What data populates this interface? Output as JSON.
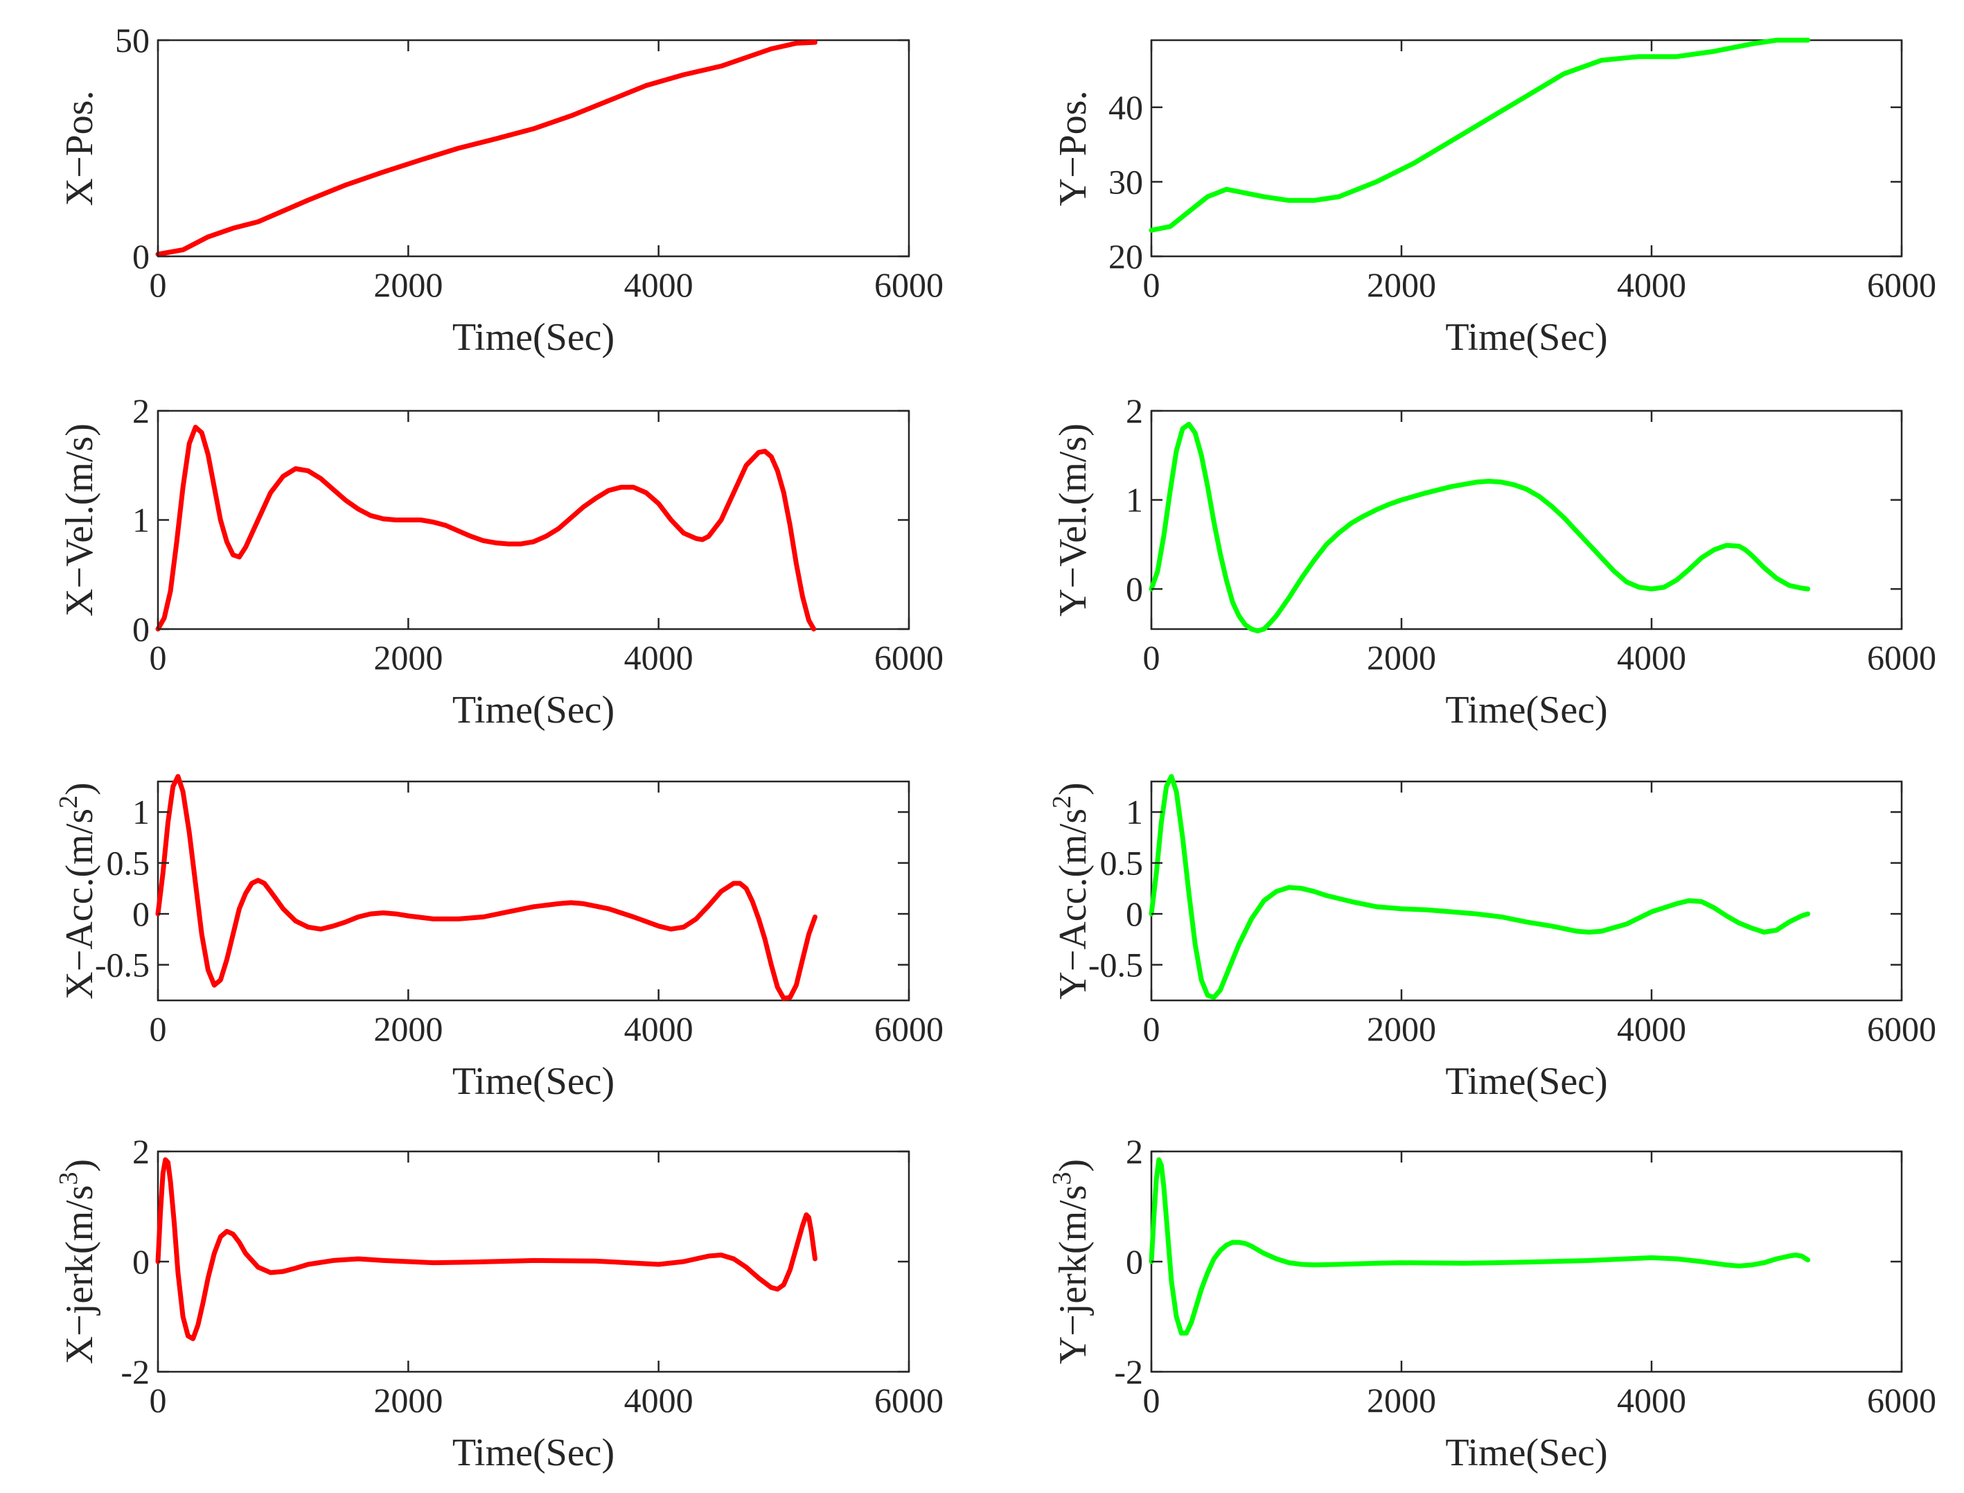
{
  "figure": {
    "colors": {
      "x_series": "#ff0000",
      "y_series": "#00ff00",
      "axes": "#262626"
    }
  },
  "chart_data": [
    {
      "id": "x-pos",
      "type": "line",
      "col": 0,
      "row": 0,
      "xlabel": "Time(Sec)",
      "ylabel": "X−Pos.",
      "ylabel_sup": "",
      "xlim": [
        0,
        6000
      ],
      "ylim": [
        0,
        50
      ],
      "xticks": [
        0,
        2000,
        4000,
        6000
      ],
      "xtick_labels": [
        "0",
        "2000",
        "4000",
        "6000"
      ],
      "yticks": [
        0,
        50
      ],
      "ytick_labels": [
        "0",
        "50"
      ],
      "series": [
        {
          "name": "X position",
          "color": "#ff0000",
          "x": [
            0,
            200,
            400,
            600,
            800,
            1000,
            1200,
            1500,
            1800,
            2100,
            2400,
            2700,
            3000,
            3300,
            3600,
            3900,
            4200,
            4500,
            4700,
            4900,
            5100,
            5250
          ],
          "y": [
            0.5,
            1.5,
            4.5,
            6.5,
            8,
            10.5,
            13,
            16.5,
            19.5,
            22.3,
            25,
            27.2,
            29.5,
            32.5,
            36,
            39.5,
            42,
            44,
            46,
            48,
            49.3,
            49.5
          ]
        }
      ]
    },
    {
      "id": "y-pos",
      "type": "line",
      "col": 1,
      "row": 0,
      "xlabel": "Time(Sec)",
      "ylabel": "Y−Pos.",
      "ylabel_sup": "",
      "xlim": [
        0,
        6000
      ],
      "ylim": [
        20,
        49
      ],
      "xticks": [
        0,
        2000,
        4000,
        6000
      ],
      "xtick_labels": [
        "0",
        "2000",
        "4000",
        "6000"
      ],
      "yticks": [
        20,
        30,
        40
      ],
      "ytick_labels": [
        "20",
        "30",
        "40"
      ],
      "series": [
        {
          "name": "Y position",
          "color": "#00ff00",
          "x": [
            0,
            150,
            300,
            450,
            600,
            750,
            900,
            1100,
            1300,
            1500,
            1800,
            2100,
            2400,
            2700,
            3000,
            3300,
            3600,
            3900,
            4200,
            4500,
            4800,
            5000,
            5250
          ],
          "y": [
            23.5,
            24,
            26,
            28,
            29,
            28.5,
            28,
            27.5,
            27.5,
            28,
            30,
            32.5,
            35.5,
            38.5,
            41.5,
            44.5,
            46.3,
            46.8,
            46.8,
            47.5,
            48.5,
            49,
            49
          ]
        }
      ]
    },
    {
      "id": "x-vel",
      "type": "line",
      "col": 0,
      "row": 1,
      "xlabel": "Time(Sec)",
      "ylabel": "X−Vel.(m/s)",
      "ylabel_sup": "",
      "xlim": [
        0,
        6000
      ],
      "ylim": [
        0,
        2
      ],
      "xticks": [
        0,
        2000,
        4000,
        6000
      ],
      "xtick_labels": [
        "0",
        "2000",
        "4000",
        "6000"
      ],
      "yticks": [
        0,
        1,
        2
      ],
      "ytick_labels": [
        "0",
        "1",
        "2"
      ],
      "series": [
        {
          "name": "X velocity",
          "color": "#ff0000",
          "x": [
            0,
            50,
            100,
            150,
            200,
            250,
            300,
            350,
            400,
            450,
            500,
            550,
            600,
            650,
            700,
            800,
            900,
            1000,
            1100,
            1200,
            1300,
            1400,
            1500,
            1600,
            1700,
            1800,
            1900,
            2000,
            2100,
            2200,
            2300,
            2400,
            2500,
            2600,
            2700,
            2800,
            2900,
            3000,
            3100,
            3200,
            3300,
            3400,
            3500,
            3600,
            3700,
            3800,
            3900,
            4000,
            4100,
            4200,
            4300,
            4350,
            4400,
            4500,
            4600,
            4700,
            4800,
            4850,
            4900,
            4950,
            5000,
            5050,
            5100,
            5150,
            5200,
            5240
          ],
          "y": [
            0,
            0.1,
            0.35,
            0.8,
            1.3,
            1.7,
            1.85,
            1.8,
            1.6,
            1.3,
            1.0,
            0.8,
            0.68,
            0.66,
            0.75,
            1.0,
            1.25,
            1.4,
            1.47,
            1.45,
            1.38,
            1.28,
            1.18,
            1.1,
            1.04,
            1.01,
            1.0,
            1.0,
            1.0,
            0.98,
            0.95,
            0.9,
            0.85,
            0.81,
            0.79,
            0.78,
            0.78,
            0.8,
            0.85,
            0.92,
            1.02,
            1.12,
            1.2,
            1.27,
            1.3,
            1.3,
            1.25,
            1.15,
            1.0,
            0.88,
            0.83,
            0.82,
            0.85,
            1.0,
            1.25,
            1.5,
            1.62,
            1.63,
            1.58,
            1.45,
            1.25,
            0.95,
            0.6,
            0.3,
            0.08,
            0
          ]
        }
      ]
    },
    {
      "id": "y-vel",
      "type": "line",
      "col": 1,
      "row": 1,
      "xlabel": "Time(Sec)",
      "ylabel": "Y−Vel.(m/s)",
      "ylabel_sup": "",
      "xlim": [
        0,
        6000
      ],
      "ylim": [
        -0.45,
        2
      ],
      "xticks": [
        0,
        2000,
        4000,
        6000
      ],
      "xtick_labels": [
        "0",
        "2000",
        "4000",
        "6000"
      ],
      "yticks": [
        0,
        1,
        2
      ],
      "ytick_labels": [
        "0",
        "1",
        "2"
      ],
      "series": [
        {
          "name": "Y velocity",
          "color": "#00ff00",
          "x": [
            0,
            50,
            100,
            150,
            200,
            250,
            300,
            350,
            400,
            450,
            500,
            550,
            600,
            650,
            700,
            750,
            800,
            850,
            900,
            950,
            1000,
            1100,
            1200,
            1300,
            1400,
            1500,
            1600,
            1700,
            1800,
            1900,
            2000,
            2200,
            2400,
            2600,
            2700,
            2800,
            2900,
            3000,
            3100,
            3200,
            3300,
            3400,
            3500,
            3600,
            3700,
            3800,
            3900,
            4000,
            4100,
            4200,
            4300,
            4400,
            4500,
            4600,
            4700,
            4750,
            4800,
            4900,
            5000,
            5100,
            5200,
            5250
          ],
          "y": [
            0,
            0.2,
            0.6,
            1.1,
            1.55,
            1.8,
            1.85,
            1.75,
            1.5,
            1.15,
            0.75,
            0.4,
            0.1,
            -0.15,
            -0.3,
            -0.4,
            -0.45,
            -0.47,
            -0.45,
            -0.38,
            -0.3,
            -0.1,
            0.12,
            0.32,
            0.5,
            0.63,
            0.74,
            0.82,
            0.89,
            0.95,
            1.0,
            1.08,
            1.15,
            1.2,
            1.21,
            1.2,
            1.17,
            1.12,
            1.04,
            0.93,
            0.8,
            0.65,
            0.5,
            0.35,
            0.2,
            0.08,
            0.02,
            0,
            0.02,
            0.1,
            0.22,
            0.35,
            0.44,
            0.49,
            0.48,
            0.44,
            0.38,
            0.24,
            0.12,
            0.04,
            0.01,
            0
          ]
        }
      ]
    },
    {
      "id": "x-acc",
      "type": "line",
      "col": 0,
      "row": 2,
      "xlabel": "Time(Sec)",
      "ylabel": "X−Acc.(m/s",
      "ylabel_sup": "2",
      "ylabel_close": ")",
      "xlim": [
        0,
        6000
      ],
      "ylim": [
        -0.85,
        1.3
      ],
      "xticks": [
        0,
        2000,
        4000,
        6000
      ],
      "xtick_labels": [
        "0",
        "2000",
        "4000",
        "6000"
      ],
      "yticks": [
        -0.5,
        0,
        0.5,
        1
      ],
      "ytick_labels": [
        "-0.5",
        "0",
        "0.5",
        "1"
      ],
      "series": [
        {
          "name": "X acceleration",
          "color": "#ff0000",
          "x": [
            0,
            40,
            80,
            120,
            160,
            200,
            250,
            300,
            350,
            400,
            450,
            500,
            550,
            600,
            650,
            700,
            750,
            800,
            850,
            900,
            1000,
            1100,
            1200,
            1300,
            1400,
            1500,
            1600,
            1700,
            1800,
            1900,
            2000,
            2200,
            2400,
            2600,
            2800,
            3000,
            3200,
            3300,
            3400,
            3600,
            3800,
            4000,
            4100,
            4200,
            4300,
            4400,
            4500,
            4600,
            4650,
            4700,
            4750,
            4800,
            4850,
            4900,
            4950,
            5000,
            5050,
            5100,
            5150,
            5200,
            5250
          ],
          "y": [
            0,
            0.4,
            0.9,
            1.25,
            1.35,
            1.2,
            0.8,
            0.3,
            -0.2,
            -0.55,
            -0.7,
            -0.65,
            -0.45,
            -0.2,
            0.05,
            0.2,
            0.3,
            0.33,
            0.3,
            0.22,
            0.05,
            -0.07,
            -0.13,
            -0.15,
            -0.12,
            -0.08,
            -0.03,
            0,
            0.01,
            0,
            -0.02,
            -0.05,
            -0.05,
            -0.03,
            0.02,
            0.07,
            0.1,
            0.11,
            0.1,
            0.05,
            -0.03,
            -0.12,
            -0.15,
            -0.13,
            -0.05,
            0.08,
            0.22,
            0.3,
            0.3,
            0.25,
            0.12,
            -0.05,
            -0.25,
            -0.5,
            -0.72,
            -0.83,
            -0.82,
            -0.7,
            -0.45,
            -0.2,
            -0.03
          ]
        }
      ]
    },
    {
      "id": "y-acc",
      "type": "line",
      "col": 1,
      "row": 2,
      "xlabel": "Time(Sec)",
      "ylabel": "Y−Acc.(m/s",
      "ylabel_sup": "2",
      "ylabel_close": ")",
      "xlim": [
        0,
        6000
      ],
      "ylim": [
        -0.85,
        1.3
      ],
      "xticks": [
        0,
        2000,
        4000,
        6000
      ],
      "xtick_labels": [
        "0",
        "2000",
        "4000",
        "6000"
      ],
      "yticks": [
        -0.5,
        0,
        0.5,
        1
      ],
      "ytick_labels": [
        "-0.5",
        "0",
        "0.5",
        "1"
      ],
      "series": [
        {
          "name": "Y acceleration",
          "color": "#00ff00",
          "x": [
            0,
            40,
            80,
            120,
            160,
            200,
            250,
            300,
            350,
            400,
            450,
            500,
            550,
            600,
            650,
            700,
            800,
            900,
            1000,
            1100,
            1200,
            1300,
            1400,
            1600,
            1800,
            2000,
            2200,
            2400,
            2600,
            2800,
            3000,
            3200,
            3400,
            3500,
            3600,
            3800,
            4000,
            4200,
            4300,
            4400,
            4500,
            4600,
            4700,
            4800,
            4900,
            5000,
            5100,
            5200,
            5250
          ],
          "y": [
            0,
            0.4,
            0.9,
            1.25,
            1.35,
            1.2,
            0.75,
            0.2,
            -0.3,
            -0.65,
            -0.8,
            -0.82,
            -0.75,
            -0.6,
            -0.45,
            -0.3,
            -0.05,
            0.13,
            0.22,
            0.26,
            0.25,
            0.22,
            0.18,
            0.12,
            0.07,
            0.05,
            0.04,
            0.02,
            0,
            -0.03,
            -0.08,
            -0.12,
            -0.17,
            -0.18,
            -0.17,
            -0.1,
            0.02,
            0.1,
            0.13,
            0.12,
            0.06,
            -0.02,
            -0.09,
            -0.14,
            -0.18,
            -0.16,
            -0.08,
            -0.02,
            0
          ]
        }
      ]
    },
    {
      "id": "x-jerk",
      "type": "line",
      "col": 0,
      "row": 3,
      "xlabel": "Time(Sec)",
      "ylabel": "X−jerk(m/s",
      "ylabel_sup": "3",
      "ylabel_close": ")",
      "xlim": [
        0,
        6000
      ],
      "ylim": [
        -2,
        2
      ],
      "xticks": [
        0,
        2000,
        4000,
        6000
      ],
      "xtick_labels": [
        "0",
        "2000",
        "4000",
        "6000"
      ],
      "yticks": [
        -2,
        0,
        2
      ],
      "ytick_labels": [
        "-2",
        "0",
        "2"
      ],
      "series": [
        {
          "name": "X jerk",
          "color": "#ff0000",
          "x": [
            0,
            20,
            40,
            60,
            80,
            100,
            130,
            160,
            200,
            240,
            280,
            320,
            360,
            400,
            450,
            500,
            550,
            600,
            650,
            700,
            800,
            900,
            1000,
            1100,
            1200,
            1400,
            1600,
            1800,
            2000,
            2200,
            2500,
            3000,
            3500,
            4000,
            4200,
            4400,
            4500,
            4600,
            4700,
            4800,
            4900,
            4950,
            5000,
            5050,
            5100,
            5150,
            5180,
            5200,
            5220,
            5250
          ],
          "y": [
            0,
            0.9,
            1.6,
            1.85,
            1.8,
            1.45,
            0.7,
            -0.2,
            -1.0,
            -1.35,
            -1.4,
            -1.15,
            -0.75,
            -0.3,
            0.15,
            0.45,
            0.55,
            0.5,
            0.35,
            0.15,
            -0.1,
            -0.2,
            -0.18,
            -0.12,
            -0.05,
            0.02,
            0.05,
            0.02,
            0,
            -0.02,
            -0.01,
            0.02,
            0.01,
            -0.05,
            0,
            0.1,
            0.12,
            0.05,
            -0.1,
            -0.3,
            -0.47,
            -0.5,
            -0.42,
            -0.15,
            0.25,
            0.65,
            0.85,
            0.8,
            0.55,
            0.05
          ]
        }
      ]
    },
    {
      "id": "y-jerk",
      "type": "line",
      "col": 1,
      "row": 3,
      "xlabel": "Time(Sec)",
      "ylabel": "Y−jerk(m/s",
      "ylabel_sup": "3",
      "ylabel_close": ")",
      "xlim": [
        0,
        6000
      ],
      "ylim": [
        -2,
        2
      ],
      "xticks": [
        0,
        2000,
        4000,
        6000
      ],
      "xtick_labels": [
        "0",
        "2000",
        "4000",
        "6000"
      ],
      "yticks": [
        -2,
        0,
        2
      ],
      "ytick_labels": [
        "-2",
        "0",
        "2"
      ],
      "series": [
        {
          "name": "Y jerk",
          "color": "#00ff00",
          "x": [
            0,
            20,
            40,
            60,
            80,
            100,
            130,
            160,
            200,
            240,
            280,
            320,
            360,
            400,
            450,
            500,
            550,
            600,
            650,
            700,
            750,
            800,
            900,
            1000,
            1100,
            1200,
            1300,
            1500,
            1800,
            2000,
            2500,
            3000,
            3500,
            3800,
            4000,
            4200,
            4400,
            4600,
            4700,
            4800,
            4900,
            5000,
            5100,
            5150,
            5200,
            5250
          ],
          "y": [
            0,
            0.8,
            1.5,
            1.85,
            1.75,
            1.35,
            0.5,
            -0.35,
            -1.0,
            -1.3,
            -1.3,
            -1.1,
            -0.8,
            -0.5,
            -0.2,
            0.05,
            0.2,
            0.3,
            0.35,
            0.35,
            0.33,
            0.28,
            0.15,
            0.05,
            -0.02,
            -0.05,
            -0.06,
            -0.05,
            -0.03,
            -0.02,
            -0.03,
            -0.01,
            0.02,
            0.05,
            0.07,
            0.05,
            0,
            -0.06,
            -0.08,
            -0.06,
            -0.02,
            0.05,
            0.1,
            0.12,
            0.1,
            0.03
          ]
        }
      ]
    }
  ]
}
